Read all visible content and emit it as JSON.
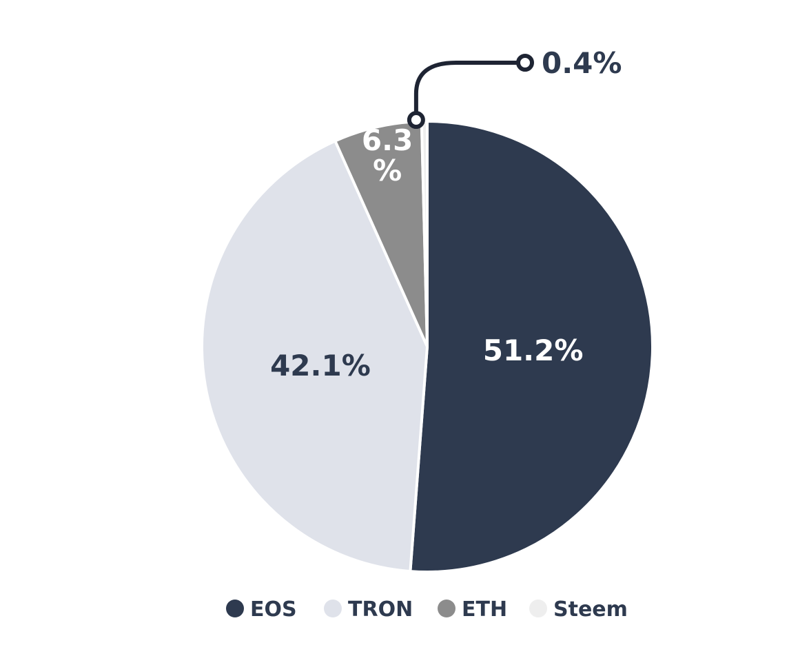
{
  "chart_data": {
    "type": "pie",
    "series": [
      {
        "name": "",
        "slices": [
          {
            "label": "EOS",
            "value": 51.2,
            "color": "#2e3a4f",
            "data_label": "51.2%",
            "label_color": "#ffffff"
          },
          {
            "label": "TRON",
            "value": 42.1,
            "color": "#dfe2ea",
            "data_label": "42.1%",
            "label_color": "#2e3a4f"
          },
          {
            "label": "ETH",
            "value": 6.3,
            "color": "#8c8c8c",
            "data_label": "6.3 %",
            "label_color": "#ffffff"
          },
          {
            "label": "Steem",
            "value": 0.4,
            "color": "#eeeeee",
            "data_label": "0.4%",
            "label_color": "#2e3a4f"
          }
        ]
      }
    ],
    "legend": [
      "EOS",
      "TRON",
      "ETH",
      "Steem"
    ],
    "legend_position": "bottom",
    "start_angle": "12 o'clock",
    "direction": "clockwise"
  }
}
